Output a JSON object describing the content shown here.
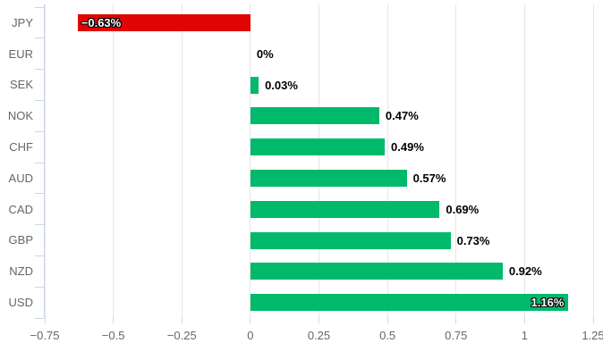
{
  "chart_data": {
    "type": "bar",
    "orientation": "horizontal",
    "title": "",
    "categories": [
      "JPY",
      "EUR",
      "SEK",
      "NOK",
      "CHF",
      "AUD",
      "CAD",
      "GBP",
      "NZD",
      "USD"
    ],
    "values": [
      -0.63,
      0,
      0.03,
      0.47,
      0.49,
      0.57,
      0.69,
      0.73,
      0.92,
      1.16
    ],
    "data_labels": [
      "−0.63%",
      "0%",
      "0.03%",
      "0.47%",
      "0.49%",
      "0.57%",
      "0.69%",
      "0.73%",
      "0.92%",
      "1.16%"
    ],
    "label_placements": [
      "inside",
      "outside",
      "outside",
      "outside",
      "outside",
      "outside",
      "outside",
      "outside",
      "outside",
      "inside"
    ],
    "xlim": [
      -0.75,
      1.25
    ],
    "xticks": [
      -0.75,
      -0.5,
      -0.25,
      0,
      0.25,
      0.5,
      0.75,
      1,
      1.25
    ],
    "xtick_labels": [
      "−0.75",
      "−0.5",
      "−0.25",
      "0",
      "0.25",
      "0.5",
      "0.75",
      "1",
      "1.25"
    ],
    "grid": "on",
    "legend": "none",
    "colors": {
      "positive_bar": "#00b96b",
      "negative_bar": "#e00404",
      "gridline": "#e6e6e6",
      "axis_line": "#ccd6eb",
      "tick_label": "#666666",
      "category_label": "#666666",
      "data_label_outside": "#000000",
      "data_label_inside": "#ffffff",
      "background": "#ffffff"
    }
  }
}
